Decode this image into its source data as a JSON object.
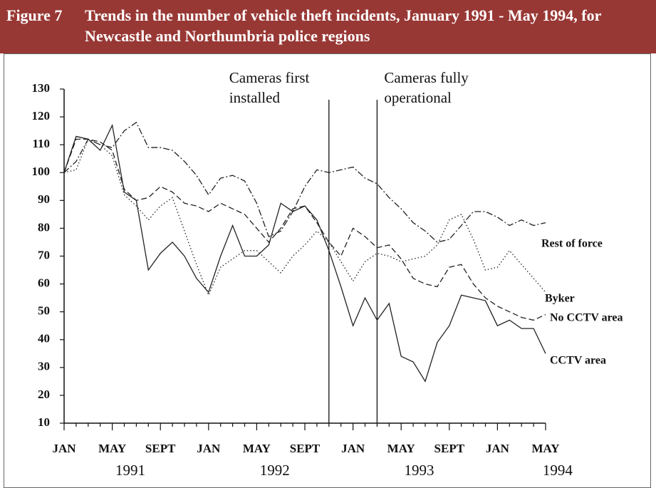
{
  "chart_data": {
    "type": "line",
    "figure": "Figure 7",
    "title": "Trends in the number of vehicle theft incidents, January 1991 - May 1994, for Newcastle and Northumbria police regions",
    "categories": [
      "JAN",
      null,
      null,
      null,
      "MAY",
      null,
      null,
      null,
      "SEPT",
      null,
      null,
      null,
      "JAN",
      null,
      null,
      null,
      "MAY",
      null,
      null,
      null,
      "SEPT",
      null,
      null,
      null,
      "JAN",
      null,
      null,
      null,
      "MAY",
      null,
      null,
      null,
      "SEPT",
      null,
      null,
      null,
      "JAN",
      null,
      null,
      null,
      "MAY"
    ],
    "years": [
      {
        "label": "1991",
        "at": 5.5
      },
      {
        "label": "1992",
        "at": 17.5
      },
      {
        "label": "1993",
        "at": 29.5
      },
      {
        "label": "1994",
        "at": 41
      }
    ],
    "ylim": [
      10,
      130
    ],
    "yticks": [
      10,
      20,
      30,
      40,
      50,
      60,
      70,
      80,
      90,
      100,
      110,
      120,
      130
    ],
    "events": [
      {
        "lines": [
          "Cameras first",
          "installed"
        ],
        "at": 22
      },
      {
        "lines": [
          "Cameras fully",
          "operational"
        ],
        "at": 26
      }
    ],
    "series": [
      {
        "name": "Rest of force",
        "color": "#222",
        "style": "dashdot",
        "values": [
          100,
          104,
          112,
          110,
          109,
          115,
          118,
          109,
          109,
          108,
          104,
          99,
          92,
          98,
          99,
          97,
          89,
          77,
          79,
          86,
          95,
          101,
          100,
          101,
          102,
          98,
          96,
          91,
          87,
          82,
          79,
          75,
          76,
          81,
          86,
          86,
          84,
          81,
          83,
          81,
          82
        ]
      },
      {
        "name": "Byker",
        "color": "#222",
        "style": "dotted",
        "values": [
          100,
          101,
          112,
          110,
          106,
          92,
          88,
          83,
          88,
          91,
          79,
          67,
          56,
          66,
          69,
          72,
          72,
          68,
          64,
          70,
          74,
          79,
          75,
          68,
          61,
          68,
          71,
          70,
          68,
          69,
          70,
          74,
          83,
          85,
          76,
          65,
          66,
          72,
          67,
          62,
          57
        ]
      },
      {
        "name": "No CCTV area",
        "color": "#222",
        "style": "dashed",
        "values": [
          100,
          112,
          112,
          111,
          108,
          94,
          90,
          91,
          95,
          93,
          89,
          88,
          86,
          89,
          87,
          85,
          80,
          75,
          80,
          87,
          88,
          82,
          75,
          70,
          80,
          77,
          73,
          74,
          69,
          62,
          60,
          59,
          66,
          67,
          60,
          55,
          52,
          50,
          48,
          47,
          49
        ]
      },
      {
        "name": "CCTV area",
        "color": "#222",
        "style": "solid",
        "values": [
          100,
          113,
          112,
          108,
          117,
          93,
          90,
          65,
          71,
          75,
          70,
          62,
          57,
          70,
          81,
          70,
          70,
          74,
          89,
          86,
          88,
          83,
          72,
          59,
          45,
          55,
          47,
          53,
          34,
          32,
          25,
          39,
          45,
          56,
          55,
          54,
          45,
          47,
          44,
          44,
          35
        ]
      }
    ]
  }
}
